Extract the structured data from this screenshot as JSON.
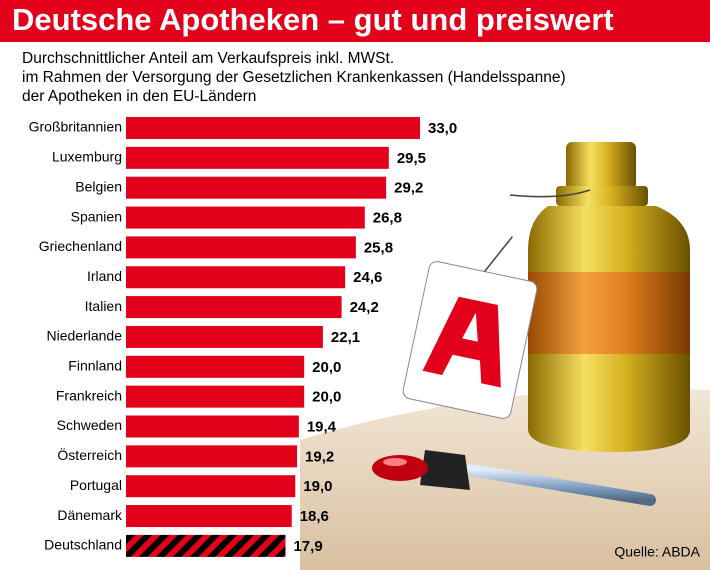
{
  "chart_data": {
    "type": "hbar",
    "title": "Deutsche Apotheken – gut und preiswert",
    "subtitle": [
      "Durchschnittlicher Anteil am Verkaufspreis inkl. MWSt.",
      "im Rahmen der Versorgung der Gesetzlichen Krankenkassen (Handelsspanne)",
      "der Apotheken in den EU-Ländern"
    ],
    "categories": [
      "Großbritannien",
      "Luxemburg",
      "Belgien",
      "Spanien",
      "Griechenland",
      "Irland",
      "Italien",
      "Niederlande",
      "Finnland",
      "Frankreich",
      "Schweden",
      "Österreich",
      "Portugal",
      "Dänemark",
      "Deutschland"
    ],
    "values": [
      33.0,
      29.5,
      29.2,
      26.8,
      25.8,
      24.6,
      24.2,
      22.1,
      20.0,
      20.0,
      19.4,
      19.2,
      19.0,
      18.6,
      17.9
    ],
    "value_labels": [
      "33,0",
      "29,5",
      "29,2",
      "26,8",
      "25,8",
      "24,6",
      "24,2",
      "22,1",
      "20,0",
      "20,0",
      "19,4",
      "19,2",
      "19,0",
      "18,6",
      "17,9"
    ],
    "bar_styles": [
      "solid",
      "solid",
      "solid",
      "solid",
      "solid",
      "solid",
      "solid",
      "solid",
      "solid",
      "solid",
      "solid",
      "solid",
      "solid",
      "solid",
      "hatched"
    ],
    "color": "#e2001a",
    "hatch_color": "#000000",
    "source": "Quelle: ABDA"
  }
}
